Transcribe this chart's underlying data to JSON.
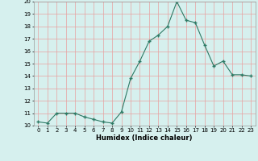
{
  "x": [
    0,
    1,
    2,
    3,
    4,
    5,
    6,
    7,
    8,
    9,
    10,
    11,
    12,
    13,
    14,
    15,
    16,
    17,
    18,
    19,
    20,
    21,
    22,
    23
  ],
  "y": [
    10.3,
    10.2,
    11.0,
    11.0,
    11.0,
    10.7,
    10.5,
    10.3,
    10.2,
    11.1,
    13.8,
    15.2,
    16.8,
    17.3,
    18.0,
    20.0,
    18.5,
    18.3,
    16.5,
    14.8,
    15.2,
    14.1,
    14.1,
    14.0
  ],
  "xlabel": "Humidex (Indice chaleur)",
  "ylim": [
    10,
    20
  ],
  "xlim_min": -0.5,
  "xlim_max": 23.5,
  "yticks": [
    10,
    11,
    12,
    13,
    14,
    15,
    16,
    17,
    18,
    19,
    20
  ],
  "xticks": [
    0,
    1,
    2,
    3,
    4,
    5,
    6,
    7,
    8,
    9,
    10,
    11,
    12,
    13,
    14,
    15,
    16,
    17,
    18,
    19,
    20,
    21,
    22,
    23
  ],
  "line_color": "#2d7a65",
  "marker_color": "#2d7a65",
  "bg_color": "#d6f0ee",
  "grid_color": "#e8a0a0",
  "tick_fontsize": 5.0,
  "xlabel_fontsize": 6.0
}
